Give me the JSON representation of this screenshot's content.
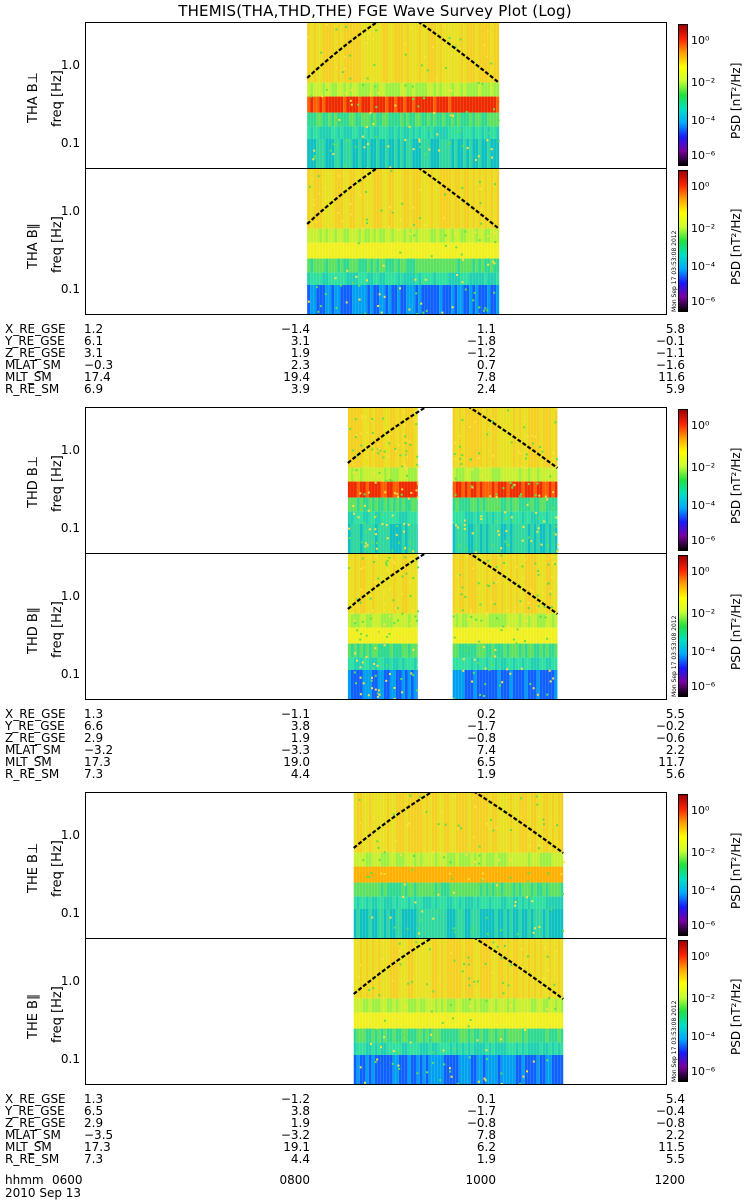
{
  "title": "THEMIS(THA,THD,THE) FGE Wave Survey Plot (Log)",
  "y_tick_labels": [
    "1.0",
    "0.1"
  ],
  "freq_label": "freq [Hz]",
  "colorbar": {
    "label": "PSD [nT²/Hz]",
    "ticks": [
      "10⁰",
      "10⁻²",
      "10⁻⁴",
      "10⁻⁶"
    ],
    "colors": [
      "#000000",
      "#7a00a0",
      "#1a1aff",
      "#00aaff",
      "#00e0c0",
      "#20e040",
      "#c8ff30",
      "#ffff00",
      "#ffa000",
      "#ff2000",
      "#a00000"
    ]
  },
  "stamp": "Mon Sep 17 03:53:08 2012",
  "probes": [
    {
      "name": "THA",
      "panels": [
        {
          "label": "THA B⊥",
          "data_segments": [
            [
              0.38,
              0.71
            ]
          ],
          "bands": [
            {
              "f": 0.33,
              "kind": "red"
            }
          ]
        },
        {
          "label": "THA B∥",
          "data_segments": [
            [
              0.38,
              0.71
            ]
          ],
          "bands": [
            {
              "f": 0.33,
              "kind": "yellow"
            }
          ]
        }
      ],
      "ephemeris": [
        {
          "name": "X_RE_GSE",
          "values": [
            "1.2",
            "−1.4",
            "1.1",
            "5.8"
          ]
        },
        {
          "name": "Y_RE_GSE",
          "values": [
            "6.1",
            "3.1",
            "−1.8",
            "−0.1"
          ]
        },
        {
          "name": "Z_RE_GSE",
          "values": [
            "3.1",
            "1.9",
            "−1.2",
            "−1.1"
          ]
        },
        {
          "name": "MLAT_SM",
          "values": [
            "−0.3",
            "2.3",
            "0.7",
            "−1.6"
          ]
        },
        {
          "name": "MLT_SM",
          "values": [
            "17.4",
            "19.4",
            "7.8",
            "11.6"
          ]
        },
        {
          "name": "R_RE_SM",
          "values": [
            "6.9",
            "3.9",
            "2.4",
            "5.9"
          ]
        }
      ]
    },
    {
      "name": "THD",
      "panels": [
        {
          "label": "THD B⊥",
          "data_segments": [
            [
              0.45,
              0.57
            ],
            [
              0.63,
              0.81
            ]
          ],
          "bands": [
            {
              "f": 0.33,
              "kind": "red"
            }
          ]
        },
        {
          "label": "THD B∥",
          "data_segments": [
            [
              0.45,
              0.57
            ],
            [
              0.63,
              0.81
            ]
          ],
          "bands": [
            {
              "f": 0.33,
              "kind": "yellow"
            }
          ]
        }
      ],
      "ephemeris": [
        {
          "name": "X_RE_GSE",
          "values": [
            "1.3",
            "−1.1",
            "0.2",
            "5.5"
          ]
        },
        {
          "name": "Y_RE_GSE",
          "values": [
            "6.6",
            "3.8",
            "−1.7",
            "−0.2"
          ]
        },
        {
          "name": "Z_RE_GSE",
          "values": [
            "2.9",
            "1.9",
            "−0.8",
            "−0.6"
          ]
        },
        {
          "name": "MLAT_SM",
          "values": [
            "−3.2",
            "−3.3",
            "7.4",
            "2.2"
          ]
        },
        {
          "name": "MLT_SM",
          "values": [
            "17.3",
            "19.0",
            "6.5",
            "11.7"
          ]
        },
        {
          "name": "R_RE_SM",
          "values": [
            "7.3",
            "4.4",
            "1.9",
            "5.6"
          ]
        }
      ]
    },
    {
      "name": "THE",
      "panels": [
        {
          "label": "THE B⊥",
          "data_segments": [
            [
              0.46,
              0.82
            ]
          ],
          "bands": [
            {
              "f": 0.33,
              "kind": "orange"
            }
          ]
        },
        {
          "label": "THE B∥",
          "data_segments": [
            [
              0.46,
              0.82
            ]
          ],
          "bands": [
            {
              "f": 0.33,
              "kind": "yellow"
            }
          ]
        }
      ],
      "ephemeris": [
        {
          "name": "X_RE_GSE",
          "values": [
            "1.3",
            "−1.2",
            "0.1",
            "5.4"
          ]
        },
        {
          "name": "Y_RE_GSE",
          "values": [
            "6.5",
            "3.8",
            "−1.7",
            "−0.4"
          ]
        },
        {
          "name": "Z_RE_GSE",
          "values": [
            "2.9",
            "1.9",
            "−0.8",
            "−0.8"
          ]
        },
        {
          "name": "MLAT_SM",
          "values": [
            "−3.5",
            "−3.2",
            "7.8",
            "2.2"
          ]
        },
        {
          "name": "MLT_SM",
          "values": [
            "17.3",
            "19.1",
            "6.2",
            "11.5"
          ]
        },
        {
          "name": "R_RE_SM",
          "values": [
            "7.3",
            "4.4",
            "1.9",
            "5.5"
          ]
        }
      ]
    }
  ],
  "time_axis": {
    "name": "hhmm",
    "labels": [
      "0600",
      "0800",
      "1000",
      "1200"
    ]
  },
  "date": "2010 Sep 13",
  "chart_data": {
    "type": "heatmap",
    "title": "THEMIS(THA,THD,THE) FGE Wave Survey Plot (Log)",
    "xlabel": "hhmm",
    "x_ticks": [
      "0600",
      "0800",
      "1000",
      "1200"
    ],
    "x_range": [
      "0600",
      "1200"
    ],
    "date": "2010 Sep 13",
    "ylabel": "freq [Hz]",
    "y_scale": "log",
    "y_ticks": [
      0.1,
      1.0
    ],
    "z_label": "PSD [nT²/Hz]",
    "z_scale": "log",
    "z_ticks": [
      "10⁰",
      "10⁻²",
      "10⁻⁴",
      "10⁻⁶"
    ],
    "panels": [
      "THA B⊥",
      "THA B∥",
      "THD B⊥",
      "THD B∥",
      "THE B⊥",
      "THE B∥"
    ]
  }
}
